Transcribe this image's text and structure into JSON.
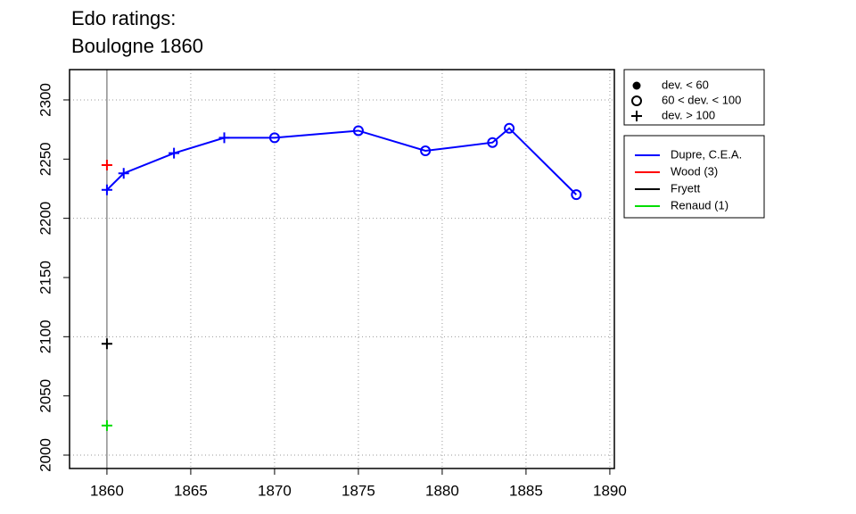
{
  "chart_data": {
    "type": "line",
    "title": "Edo ratings:",
    "subtitle": "Boulogne 1860",
    "xlim": [
      1857.77,
      1890.27
    ],
    "xticks": [
      1860,
      1865,
      1870,
      1875,
      1880,
      1885,
      1890
    ],
    "ylim": [
      1988.7,
      2325.6
    ],
    "yticks": [
      2000,
      2050,
      2100,
      2150,
      2200,
      2250,
      2300
    ],
    "ygrid": [
      2000,
      2100,
      2200,
      2300
    ],
    "grid": true,
    "vline": 1860,
    "vline_color": "#555555",
    "marker_legend": [
      {
        "label": "dev. < 60",
        "marker": "dot"
      },
      {
        "label": "60 < dev. < 100",
        "marker": "circle"
      },
      {
        "label": "dev. > 100",
        "marker": "plus"
      }
    ],
    "series": [
      {
        "name": "Dupre, C.E.A.",
        "color": "#0000ff",
        "x": [
          1860,
          1861,
          1864,
          1867,
          1870,
          1875,
          1879,
          1883,
          1884,
          1888
        ],
        "values": [
          2224,
          2238,
          2255,
          2268,
          2268,
          2274,
          2257,
          2264,
          2276,
          2220
        ],
        "markers": [
          "plus",
          "plus",
          "plus",
          "plus",
          "circle",
          "circle",
          "circle",
          "circle",
          "circle",
          "circle"
        ]
      },
      {
        "name": "Wood (3)",
        "color": "#ff0000",
        "x": [
          1860
        ],
        "values": [
          2245
        ],
        "markers": [
          "plus"
        ]
      },
      {
        "name": "Fryett",
        "color": "#000000",
        "x": [
          1860
        ],
        "values": [
          2094
        ],
        "markers": [
          "plus"
        ]
      },
      {
        "name": "Renaud (1)",
        "color": "#00dd00",
        "x": [
          1860
        ],
        "values": [
          2025
        ],
        "markers": [
          "plus"
        ]
      }
    ]
  }
}
